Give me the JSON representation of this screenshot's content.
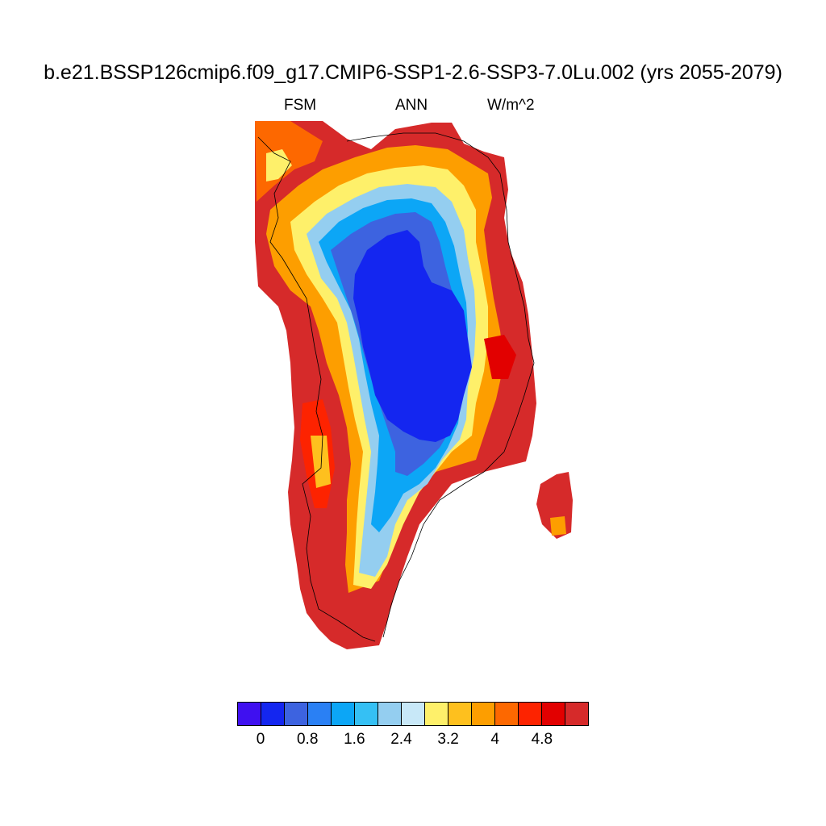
{
  "title": "b.e21.BSSP126cmip6.f09_g17.CMIP6-SSP1-2.6-SSP3-7.0Lu.002 (yrs 2055-2079)",
  "subtitles": {
    "left": "FSM",
    "center": "ANN",
    "right": "W/m^2"
  },
  "colorbar": {
    "colors": [
      "#3f10f0",
      "#1426f0",
      "#3d63e0",
      "#2a80f4",
      "#0ca6f6",
      "#35c0f4",
      "#94cef0",
      "#c8e8f8",
      "#fef06a",
      "#fec01e",
      "#fd9e00",
      "#fd6800",
      "#fd2300",
      "#e20000",
      "#d62a2a"
    ],
    "tick_values": [
      0,
      0.8,
      1.6,
      2.4,
      3.2,
      4,
      4.8
    ],
    "tick_labels": [
      "0",
      "0.8",
      "1.6",
      "2.4",
      "3.2",
      "4",
      "4.8"
    ],
    "levels": [
      0,
      0.4,
      0.8,
      1.2,
      1.6,
      2.0,
      2.4,
      2.8,
      3.2,
      3.6,
      4.0,
      4.4,
      4.8,
      5.2
    ]
  },
  "chart_data": {
    "type": "heatmap",
    "variable": "FSM",
    "period": "ANN",
    "units": "W/m^2",
    "region_pattern": {
      "interior_ice_sheet": "0.4-0.8",
      "inner_margin": "1.2-2.8",
      "transition_ring": "2.8-4.4",
      "coastal_periphery": "4.8+"
    }
  }
}
